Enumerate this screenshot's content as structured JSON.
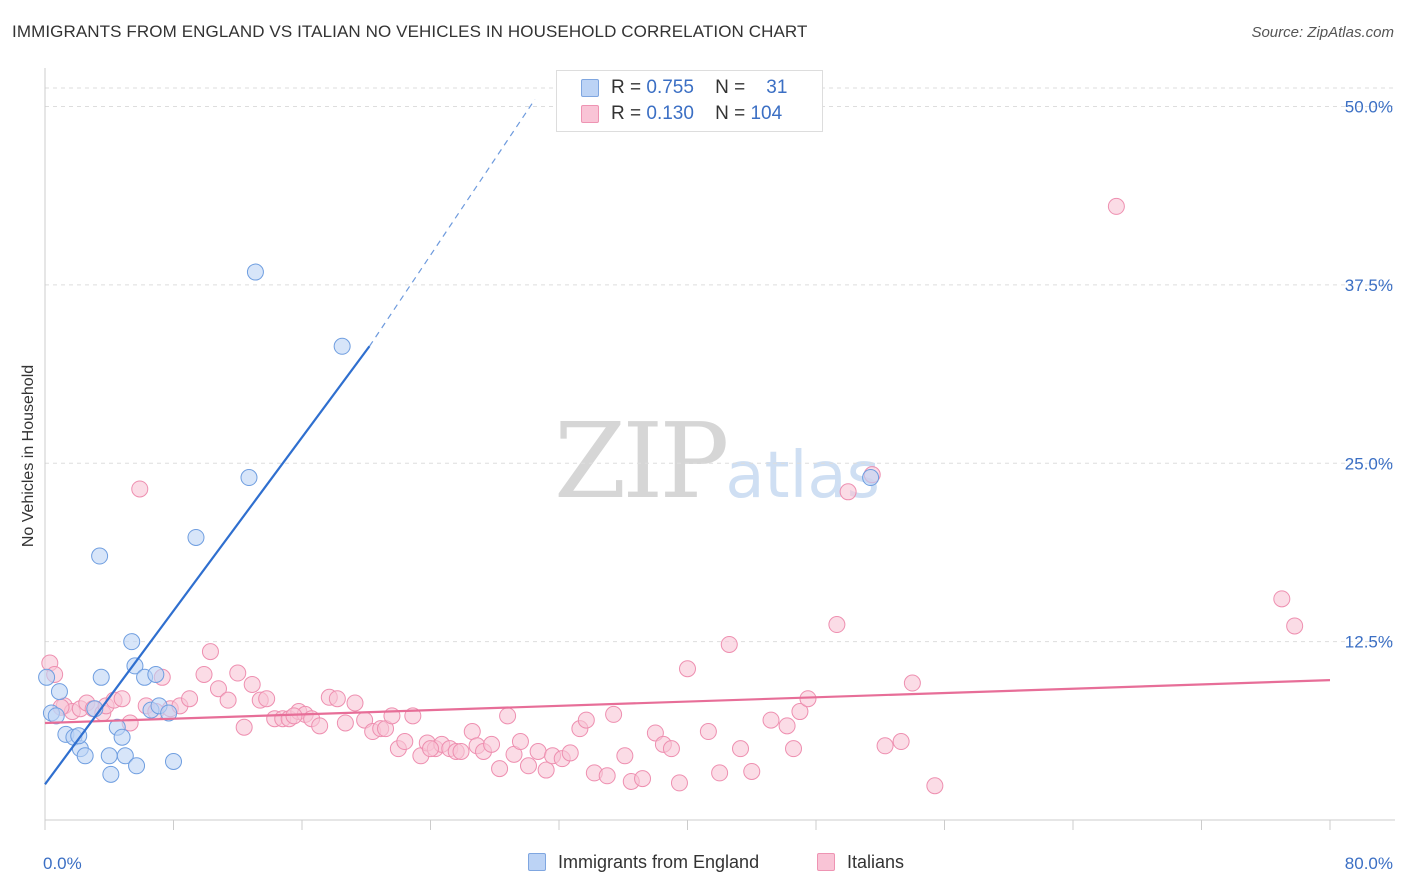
{
  "title": "IMMIGRANTS FROM ENGLAND VS ITALIAN NO VEHICLES IN HOUSEHOLD CORRELATION CHART",
  "source": "Source: ZipAtlas.com",
  "watermark": {
    "part1": "ZIP",
    "part2": "atlas"
  },
  "legend_top": {
    "rows": [
      {
        "r_label": "R =",
        "r_value": "0.755",
        "n_label": "N =",
        "n_value": "31"
      },
      {
        "r_label": "R =",
        "r_value": "0.130",
        "n_label": "N =",
        "n_value": "104"
      }
    ]
  },
  "legend_bottom": {
    "series1": "Immigrants from England",
    "series2": "Italians"
  },
  "colors": {
    "blue_fill": "#bcd3f5",
    "blue_edge": "#6f9ee0",
    "blue_line": "#2f6fcf",
    "pink_fill": "#f9c4d6",
    "pink_edge": "#ee8fb0",
    "pink_line": "#e76e98",
    "axis_label": "#3b6fc4",
    "grid": "#dddddd"
  },
  "chart_data": {
    "type": "scatter",
    "title": "IMMIGRANTS FROM ENGLAND VS ITALIAN NO VEHICLES IN HOUSEHOLD CORRELATION CHART",
    "xlabel": "",
    "ylabel": "No Vehicles in Household",
    "xlim": [
      0,
      80
    ],
    "ylim": [
      0,
      52
    ],
    "x_tick_labels": [
      "0.0%",
      "80.0%"
    ],
    "y_ticks": [
      12.5,
      25.0,
      37.5,
      50.0
    ],
    "y_tick_labels": [
      "12.5%",
      "25.0%",
      "37.5%",
      "50.0%"
    ],
    "grid": true,
    "legend_position": "top-center",
    "series": [
      {
        "name": "Immigrants from England",
        "color": "blue",
        "r": 0.755,
        "n": 31,
        "trend": {
          "x0": 0,
          "y0": 2.5,
          "x1": 20.2,
          "y1": 33.2,
          "dash_x1": 30.5,
          "dash_y1": 50.5
        },
        "points": [
          [
            0.1,
            10.0
          ],
          [
            0.4,
            7.5
          ],
          [
            0.9,
            9.0
          ],
          [
            1.3,
            6.0
          ],
          [
            1.8,
            5.8
          ],
          [
            2.2,
            5.0
          ],
          [
            2.5,
            4.5
          ],
          [
            3.1,
            7.8
          ],
          [
            3.4,
            18.5
          ],
          [
            3.5,
            10.0
          ],
          [
            4.0,
            4.5
          ],
          [
            4.1,
            3.2
          ],
          [
            4.5,
            6.5
          ],
          [
            4.8,
            5.8
          ],
          [
            5.0,
            4.5
          ],
          [
            5.4,
            12.5
          ],
          [
            5.6,
            10.8
          ],
          [
            5.7,
            3.8
          ],
          [
            6.2,
            10.0
          ],
          [
            6.6,
            7.7
          ],
          [
            6.9,
            10.2
          ],
          [
            7.1,
            8.0
          ],
          [
            7.7,
            7.5
          ],
          [
            8.0,
            4.1
          ],
          [
            9.4,
            19.8
          ],
          [
            12.7,
            24.0
          ],
          [
            13.1,
            38.4
          ],
          [
            18.5,
            33.2
          ],
          [
            51.4,
            24.0
          ],
          [
            2.1,
            5.9
          ],
          [
            0.7,
            7.3
          ]
        ]
      },
      {
        "name": "Italians",
        "color": "pink",
        "r": 0.13,
        "n": 104,
        "trend": {
          "x0": 0,
          "y0": 6.8,
          "x1": 80,
          "y1": 9.8
        },
        "points": [
          [
            0.3,
            11.0
          ],
          [
            0.6,
            10.2
          ],
          [
            1.2,
            8.0
          ],
          [
            1.7,
            7.6
          ],
          [
            2.2,
            7.8
          ],
          [
            2.6,
            8.2
          ],
          [
            3.0,
            7.8
          ],
          [
            3.6,
            7.5
          ],
          [
            3.8,
            8.0
          ],
          [
            4.3,
            8.4
          ],
          [
            4.8,
            8.5
          ],
          [
            5.3,
            6.8
          ],
          [
            5.9,
            23.2
          ],
          [
            6.3,
            8.0
          ],
          [
            6.9,
            7.6
          ],
          [
            7.3,
            10.0
          ],
          [
            7.8,
            7.8
          ],
          [
            8.4,
            8.0
          ],
          [
            9.0,
            8.5
          ],
          [
            9.9,
            10.2
          ],
          [
            10.3,
            11.8
          ],
          [
            10.8,
            9.2
          ],
          [
            11.4,
            8.4
          ],
          [
            12.0,
            10.3
          ],
          [
            12.4,
            6.5
          ],
          [
            12.9,
            9.5
          ],
          [
            13.4,
            8.4
          ],
          [
            13.8,
            8.5
          ],
          [
            14.3,
            7.1
          ],
          [
            14.8,
            7.1
          ],
          [
            15.2,
            7.1
          ],
          [
            15.8,
            7.6
          ],
          [
            16.2,
            7.4
          ],
          [
            16.6,
            7.1
          ],
          [
            17.1,
            6.6
          ],
          [
            17.7,
            8.6
          ],
          [
            18.2,
            8.5
          ],
          [
            18.7,
            6.8
          ],
          [
            19.3,
            8.2
          ],
          [
            19.9,
            7.0
          ],
          [
            20.4,
            6.2
          ],
          [
            20.9,
            6.4
          ],
          [
            21.2,
            6.4
          ],
          [
            21.6,
            7.3
          ],
          [
            22.0,
            5.0
          ],
          [
            22.4,
            5.5
          ],
          [
            22.9,
            7.3
          ],
          [
            23.4,
            4.5
          ],
          [
            23.8,
            5.4
          ],
          [
            24.3,
            5.0
          ],
          [
            24.7,
            5.3
          ],
          [
            25.2,
            5.0
          ],
          [
            25.6,
            4.8
          ],
          [
            25.9,
            4.8
          ],
          [
            26.6,
            6.2
          ],
          [
            26.9,
            5.2
          ],
          [
            27.3,
            4.8
          ],
          [
            27.8,
            5.3
          ],
          [
            28.3,
            3.6
          ],
          [
            28.8,
            7.3
          ],
          [
            29.2,
            4.6
          ],
          [
            29.6,
            5.5
          ],
          [
            30.1,
            3.8
          ],
          [
            30.7,
            4.8
          ],
          [
            31.2,
            3.5
          ],
          [
            31.6,
            4.5
          ],
          [
            32.2,
            4.3
          ],
          [
            32.7,
            4.7
          ],
          [
            33.3,
            6.4
          ],
          [
            33.7,
            7.0
          ],
          [
            34.2,
            3.3
          ],
          [
            35.0,
            3.1
          ],
          [
            35.4,
            7.4
          ],
          [
            36.1,
            4.5
          ],
          [
            36.5,
            2.7
          ],
          [
            37.2,
            2.9
          ],
          [
            38.0,
            6.1
          ],
          [
            38.5,
            5.3
          ],
          [
            39.0,
            5.0
          ],
          [
            39.5,
            2.6
          ],
          [
            40.0,
            10.6
          ],
          [
            41.3,
            6.2
          ],
          [
            42.0,
            3.3
          ],
          [
            42.6,
            12.3
          ],
          [
            43.3,
            5.0
          ],
          [
            44.0,
            3.4
          ],
          [
            45.2,
            7.0
          ],
          [
            46.2,
            6.6
          ],
          [
            46.6,
            5.0
          ],
          [
            47.0,
            7.6
          ],
          [
            47.5,
            8.5
          ],
          [
            49.3,
            13.7
          ],
          [
            50.0,
            23.0
          ],
          [
            51.5,
            24.2
          ],
          [
            52.3,
            5.2
          ],
          [
            53.3,
            5.5
          ],
          [
            54.0,
            9.6
          ],
          [
            55.4,
            2.4
          ],
          [
            66.7,
            43.0
          ],
          [
            77.0,
            15.5
          ],
          [
            77.8,
            13.6
          ],
          [
            1.0,
            7.9
          ],
          [
            15.5,
            7.3
          ],
          [
            24.0,
            5.0
          ]
        ]
      }
    ]
  }
}
